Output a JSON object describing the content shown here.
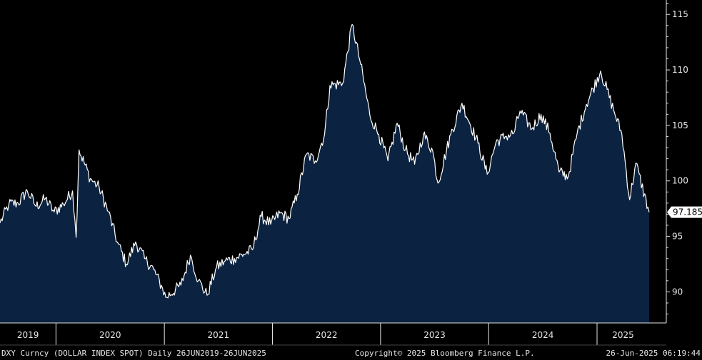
{
  "chart_data": {
    "type": "area",
    "title": "",
    "xlabel": "",
    "ylabel": "",
    "xlim": [
      "2019-06-26",
      "2025-06-26"
    ],
    "ylim": [
      87.2,
      116.3
    ],
    "yticks": [
      90,
      95,
      100,
      105,
      110,
      115
    ],
    "year_labels": [
      "2019",
      "2020",
      "2021",
      "2022",
      "2023",
      "2024",
      "2025"
    ],
    "grid": false,
    "legend": "none",
    "last_value_label": "97.185",
    "series": [
      {
        "values": [
          [
            "2019-06-26",
            96.2
          ],
          [
            "2019-07-26",
            97.9
          ],
          [
            "2019-08-26",
            98.0
          ],
          [
            "2019-09-26",
            99.1
          ],
          [
            "2019-10-26",
            97.7
          ],
          [
            "2019-11-26",
            98.4
          ],
          [
            "2019-12-26",
            97.2
          ],
          [
            "2020-01-26",
            97.9
          ],
          [
            "2020-02-26",
            99.1
          ],
          [
            "2020-03-09",
            94.9
          ],
          [
            "2020-03-19",
            102.8
          ],
          [
            "2020-04-26",
            100.2
          ],
          [
            "2020-05-26",
            99.4
          ],
          [
            "2020-06-26",
            97.2
          ],
          [
            "2020-07-26",
            94.5
          ],
          [
            "2020-08-26",
            92.5
          ],
          [
            "2020-09-26",
            94.5
          ],
          [
            "2020-10-26",
            93.0
          ],
          [
            "2020-11-26",
            92.0
          ],
          [
            "2020-12-26",
            90.3
          ],
          [
            "2021-01-06",
            89.5
          ],
          [
            "2021-02-26",
            90.6
          ],
          [
            "2021-03-30",
            93.3
          ],
          [
            "2021-04-26",
            91.0
          ],
          [
            "2021-05-25",
            89.7
          ],
          [
            "2021-06-26",
            92.2
          ],
          [
            "2021-07-26",
            92.8
          ],
          [
            "2021-08-26",
            93.0
          ],
          [
            "2021-09-26",
            93.4
          ],
          [
            "2021-10-26",
            93.8
          ],
          [
            "2021-11-24",
            96.8
          ],
          [
            "2021-12-26",
            96.1
          ],
          [
            "2022-01-26",
            97.1
          ],
          [
            "2022-02-26",
            96.6
          ],
          [
            "2022-03-26",
            98.8
          ],
          [
            "2022-04-26",
            102.4
          ],
          [
            "2022-05-26",
            101.8
          ],
          [
            "2022-06-26",
            104.2
          ],
          [
            "2022-07-14",
            108.6
          ],
          [
            "2022-08-26",
            108.8
          ],
          [
            "2022-09-27",
            114.1
          ],
          [
            "2022-10-26",
            110.5
          ],
          [
            "2022-11-26",
            105.9
          ],
          [
            "2022-12-26",
            104.2
          ],
          [
            "2023-01-26",
            101.8
          ],
          [
            "2023-02-26",
            105.2
          ],
          [
            "2023-03-26",
            102.8
          ],
          [
            "2023-04-26",
            101.5
          ],
          [
            "2023-05-26",
            104.2
          ],
          [
            "2023-06-26",
            102.7
          ],
          [
            "2023-07-14",
            99.8
          ],
          [
            "2023-08-26",
            104.2
          ],
          [
            "2023-10-03",
            107.0
          ],
          [
            "2023-11-26",
            103.4
          ],
          [
            "2023-12-27",
            100.6
          ],
          [
            "2024-01-26",
            103.5
          ],
          [
            "2024-02-26",
            104.0
          ],
          [
            "2024-03-26",
            104.3
          ],
          [
            "2024-04-16",
            106.3
          ],
          [
            "2024-05-26",
            104.7
          ],
          [
            "2024-06-26",
            106.0
          ],
          [
            "2024-07-26",
            104.3
          ],
          [
            "2024-08-26",
            100.8
          ],
          [
            "2024-09-26",
            100.4
          ],
          [
            "2024-10-26",
            104.3
          ],
          [
            "2024-11-26",
            106.9
          ],
          [
            "2025-01-13",
            109.9
          ],
          [
            "2025-02-26",
            106.4
          ],
          [
            "2025-03-26",
            104.2
          ],
          [
            "2025-04-21",
            98.3
          ],
          [
            "2025-05-12",
            101.6
          ],
          [
            "2025-06-26",
            97.185
          ]
        ]
      }
    ]
  },
  "footer": {
    "left": "DXY Curncy (DOLLAR INDEX SPOT)  Daily 26JUN2019-26JUN2025",
    "center": "Copyright© 2025 Bloomberg Finance L.P.",
    "right": "26-Jun-2025 06:19:44"
  },
  "colors": {
    "background": "#000000",
    "area_fill": "#0b2240",
    "line": "#ffffff",
    "axis": "#e6e6e6",
    "last_value_box": "#ffffff",
    "last_value_text": "#000000"
  }
}
